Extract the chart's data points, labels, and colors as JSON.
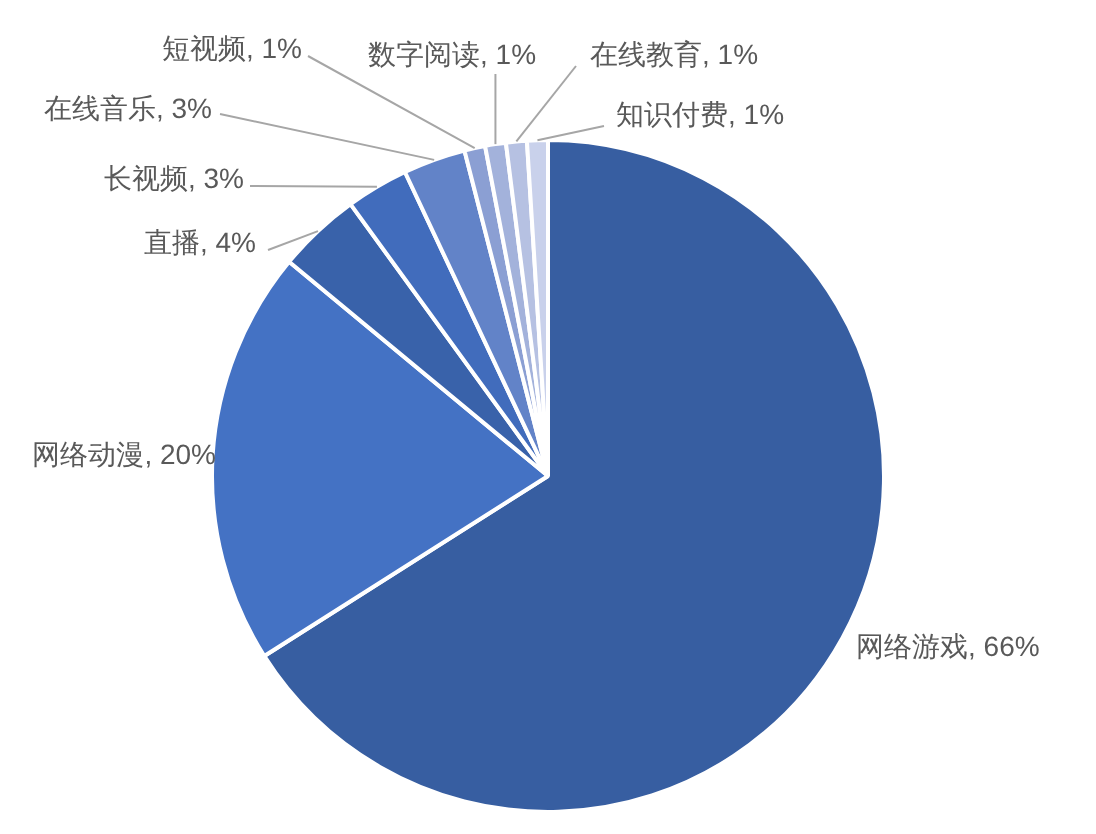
{
  "chart_data": {
    "type": "pie",
    "categories": [
      "网络游戏",
      "网络动漫",
      "直播",
      "长视频",
      "在线音乐",
      "短视频",
      "数字阅读",
      "在线教育",
      "知识付费"
    ],
    "values": [
      66,
      20,
      4,
      3,
      3,
      1,
      1,
      1,
      1
    ],
    "value_labels": [
      "66%",
      "20%",
      "4%",
      "3%",
      "3%",
      "1%",
      "1%",
      "1%",
      "1%"
    ],
    "colors": [
      "#375ea1",
      "#4472c4",
      "#3962aa",
      "#416cbc",
      "#6283c8",
      "#8b9fd3",
      "#a3b2db",
      "#b6c1e2",
      "#c9d1eb"
    ]
  }
}
